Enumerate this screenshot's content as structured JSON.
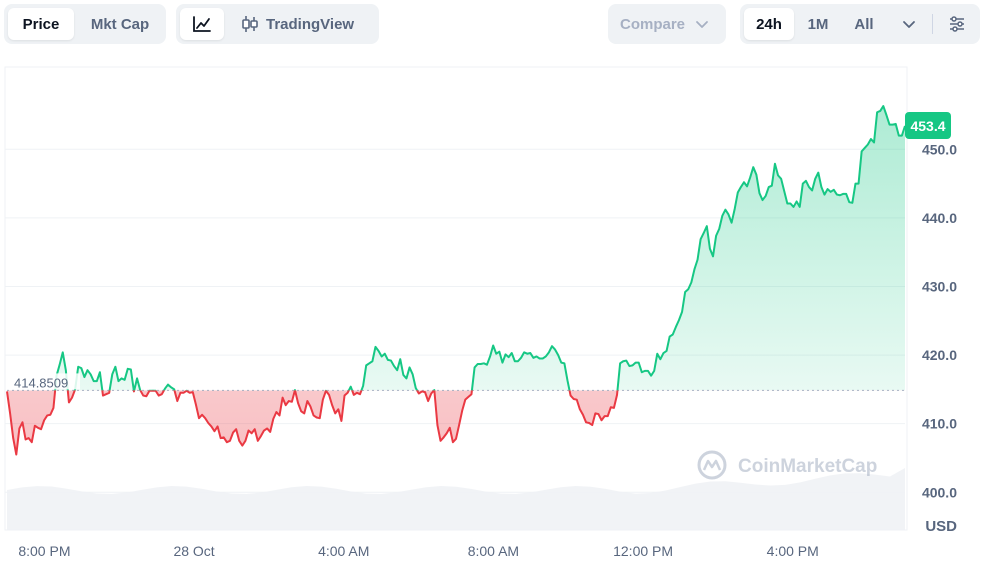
{
  "toolbar": {
    "price_label": "Price",
    "mktcap_label": "Mkt Cap",
    "line_icon": "line-chart-icon",
    "tradingview_icon": "candlestick-icon",
    "tradingview_label": "TradingView",
    "compare_label": "Compare",
    "compare_icon": "chevron-down-icon",
    "range_24h": "24h",
    "range_1m": "1M",
    "range_all": "All",
    "range_more_icon": "chevron-down-icon",
    "settings_icon": "sliders-icon"
  },
  "watermark": "CoinMarketCap",
  "colors": {
    "up": "#16c784",
    "down": "#ea3943",
    "grid": "#eff2f5",
    "axis_text": "#58667e"
  },
  "chart_data": {
    "type": "area",
    "currency_label": "USD",
    "baseline": 414.8509,
    "baseline_label": "414.8509",
    "current_price": 453.4,
    "current_price_label": "453.4",
    "ylim": [
      394.5,
      462
    ],
    "y_ticks": [
      400,
      410,
      420,
      430,
      440,
      450
    ],
    "y_tick_labels": [
      "400.0",
      "410.0",
      "420.0",
      "430.0",
      "440.0",
      "450.0"
    ],
    "x_tick_labels": [
      "8:00 PM",
      "28 Oct",
      "4:00 AM",
      "8:00 AM",
      "12:00 PM",
      "4:00 PM"
    ],
    "x_tick_hours": [
      1,
      5,
      9,
      13,
      17,
      21
    ],
    "prices": [
      414.7,
      411.5,
      407.9,
      405.5,
      409.3,
      410.2,
      407.7,
      407.9,
      407.3,
      409.7,
      409.4,
      409.2,
      410.5,
      411.2,
      411.3,
      412.3,
      417.0,
      418.6,
      420.4,
      417.8,
      413.1,
      413.8,
      415.0,
      418.3,
      418.1,
      416.8,
      417.8,
      417.2,
      416.2,
      416.2,
      417.5,
      414.1,
      414.3,
      414.5,
      417.2,
      418.3,
      416.2,
      416.6,
      416.4,
      418.0,
      417.9,
      414.7,
      416.6,
      414.9,
      414.1,
      414.0,
      414.8,
      414.8,
      414.8,
      414.1,
      414.3,
      415.1,
      415.7,
      415.3,
      415.0,
      413.3,
      414.5,
      414.5,
      414.8,
      414.5,
      414.6,
      412.8,
      410.8,
      411.3,
      410.8,
      410.1,
      409.6,
      408.9,
      409.6,
      407.9,
      408.0,
      407.3,
      407.5,
      408.7,
      409.2,
      407.5,
      406.8,
      407.5,
      409.0,
      408.6,
      409.2,
      407.5,
      408.2,
      409.0,
      409.3,
      408.8,
      410.7,
      411.7,
      411.2,
      413.8,
      412.7,
      413.3,
      413.2,
      414.9,
      413.0,
      411.8,
      411.5,
      413.3,
      412.5,
      411.2,
      410.9,
      410.8,
      413.5,
      414.8,
      414.2,
      412.7,
      411.5,
      412.1,
      410.4,
      414.1,
      414.5,
      415.4,
      414.2,
      414.5,
      414.3,
      415.5,
      418.5,
      418.8,
      419.1,
      421.2,
      420.6,
      419.8,
      420.2,
      419.3,
      419.2,
      418.4,
      417.8,
      419.4,
      417.1,
      416.6,
      418.2,
      417.2,
      415.2,
      414.4,
      414.7,
      414.6,
      413.3,
      414.4,
      414.9,
      409.8,
      407.5,
      408.0,
      408.6,
      409.4,
      407.3,
      407.8,
      409.8,
      411.9,
      413.5,
      413.9,
      414.3,
      418.2,
      418.7,
      418.7,
      418.8,
      418.6,
      419.8,
      421.4,
      420.2,
      420.5,
      418.9,
      420.1,
      419.7,
      420.3,
      419.1,
      419.1,
      419.6,
      420.4,
      420.2,
      420.3,
      419.6,
      419.8,
      419.5,
      419.5,
      419.8,
      420.4,
      421.3,
      420.8,
      420.0,
      418.9,
      418.8,
      416.3,
      414.1,
      413.6,
      413.5,
      412.1,
      411.3,
      410.2,
      410.1,
      409.8,
      411.5,
      411.4,
      410.5,
      411.1,
      411.1,
      412.4,
      412.3,
      414.2,
      418.8,
      419.1,
      419.2,
      418.4,
      418.5,
      418.9,
      418.9,
      417.5,
      417.7,
      417.7,
      417.0,
      417.7,
      420.2,
      419.4,
      420.3,
      420.6,
      422.7,
      423.0,
      424.1,
      425.1,
      426.3,
      429.2,
      429.6,
      430.6,
      432.5,
      433.9,
      436.9,
      437.8,
      438.8,
      435.5,
      434.4,
      437.4,
      438.4,
      440.3,
      441.2,
      440.5,
      439.3,
      441.3,
      443.7,
      444.5,
      445.2,
      444.6,
      445.9,
      447.4,
      446.3,
      443.6,
      442.6,
      443.2,
      444.5,
      444.7,
      447.9,
      446.2,
      445.7,
      443.9,
      442.1,
      442.1,
      441.6,
      442.4,
      441.6,
      445.0,
      445.4,
      444.5,
      444.0,
      445.7,
      446.6,
      444.5,
      443.4,
      444.2,
      443.8,
      444.1,
      443.4,
      443.3,
      443.5,
      443.5,
      442.3,
      442.2,
      445.0,
      445.0,
      449.7,
      450.2,
      450.7,
      451.5,
      451.0,
      455.4,
      455.6,
      456.3,
      455.0,
      453.6,
      453.6,
      453.7,
      452.0,
      452.0,
      453.4
    ]
  }
}
